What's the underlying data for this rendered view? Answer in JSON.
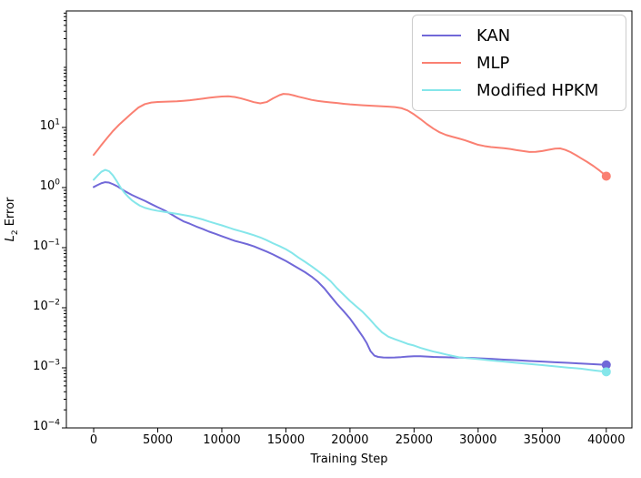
{
  "axes": {
    "xlabel": "Training Step",
    "ylabel_prefix": "L",
    "ylabel_sub": "2",
    "ylabel_rest": " Error",
    "xticks": [
      0,
      5000,
      10000,
      15000,
      20000,
      25000,
      30000,
      35000,
      40000
    ],
    "ytick_exponents": [
      1,
      0,
      -1,
      -2,
      -3,
      -4
    ]
  },
  "legend": {
    "position": "upper right",
    "items": [
      {
        "label": "KAN",
        "color": "#7168d8"
      },
      {
        "label": "MLP",
        "color": "#fa8072"
      },
      {
        "label": "Modified HPKM",
        "color": "#85e6ea"
      }
    ]
  },
  "chart_data": {
    "type": "line",
    "title": "",
    "xlabel": "Training Step",
    "ylabel": "L2 Error",
    "grid": false,
    "x_axis": {
      "min": -2130,
      "max": 42000
    },
    "y_axis": {
      "scale": "log",
      "min": 0.0001,
      "max": 870
    },
    "series": [
      {
        "name": "KAN",
        "color": "#7168d8",
        "end_marker": true,
        "final_value": 0.00112,
        "points": [
          [
            0,
            1.02
          ],
          [
            300,
            1.1
          ],
          [
            600,
            1.18
          ],
          [
            900,
            1.23
          ],
          [
            1200,
            1.21
          ],
          [
            1500,
            1.14
          ],
          [
            1800,
            1.06
          ],
          [
            2100,
            0.97
          ],
          [
            2400,
            0.88
          ],
          [
            2700,
            0.81
          ],
          [
            3000,
            0.75
          ],
          [
            3500,
            0.67
          ],
          [
            4000,
            0.6
          ],
          [
            4500,
            0.53
          ],
          [
            5000,
            0.47
          ],
          [
            5500,
            0.42
          ],
          [
            6000,
            0.365
          ],
          [
            6500,
            0.315
          ],
          [
            7000,
            0.275
          ],
          [
            7500,
            0.25
          ],
          [
            8000,
            0.225
          ],
          [
            8500,
            0.205
          ],
          [
            9000,
            0.185
          ],
          [
            9500,
            0.17
          ],
          [
            10000,
            0.155
          ],
          [
            10500,
            0.142
          ],
          [
            11000,
            0.13
          ],
          [
            11500,
            0.122
          ],
          [
            12000,
            0.114
          ],
          [
            12500,
            0.105
          ],
          [
            13000,
            0.095
          ],
          [
            13500,
            0.086
          ],
          [
            14000,
            0.077
          ],
          [
            14500,
            0.068
          ],
          [
            15000,
            0.06
          ],
          [
            15500,
            0.052
          ],
          [
            16000,
            0.045
          ],
          [
            16500,
            0.039
          ],
          [
            17000,
            0.033
          ],
          [
            17500,
            0.027
          ],
          [
            18000,
            0.021
          ],
          [
            18500,
            0.0155
          ],
          [
            19000,
            0.0115
          ],
          [
            19500,
            0.0088
          ],
          [
            20000,
            0.0066
          ],
          [
            20500,
            0.0047
          ],
          [
            21000,
            0.0033
          ],
          [
            21300,
            0.0026
          ],
          [
            21600,
            0.0019
          ],
          [
            21900,
            0.0016
          ],
          [
            22200,
            0.00152
          ],
          [
            22600,
            0.00149
          ],
          [
            23000,
            0.00148
          ],
          [
            23500,
            0.00149
          ],
          [
            24000,
            0.00151
          ],
          [
            24500,
            0.00154
          ],
          [
            25000,
            0.00156
          ],
          [
            25500,
            0.00156
          ],
          [
            26000,
            0.00154
          ],
          [
            26500,
            0.00152
          ],
          [
            27000,
            0.00151
          ],
          [
            27500,
            0.0015
          ],
          [
            28000,
            0.00149
          ],
          [
            28500,
            0.00148
          ],
          [
            29000,
            0.00147
          ],
          [
            29500,
            0.00146
          ],
          [
            30000,
            0.00144
          ],
          [
            31000,
            0.00141
          ],
          [
            32000,
            0.00137
          ],
          [
            33000,
            0.00134
          ],
          [
            34000,
            0.0013
          ],
          [
            35000,
            0.00127
          ],
          [
            36000,
            0.00124
          ],
          [
            37000,
            0.00121
          ],
          [
            38000,
            0.00118
          ],
          [
            39000,
            0.00115
          ],
          [
            40000,
            0.00112
          ]
        ]
      },
      {
        "name": "MLP",
        "color": "#fa8072",
        "end_marker": true,
        "final_value": 1.55,
        "points": [
          [
            0,
            3.5
          ],
          [
            300,
            4.2
          ],
          [
            600,
            5.1
          ],
          [
            900,
            6.1
          ],
          [
            1200,
            7.3
          ],
          [
            1500,
            8.7
          ],
          [
            2000,
            11.2
          ],
          [
            2500,
            14
          ],
          [
            3000,
            17.5
          ],
          [
            3500,
            21.5
          ],
          [
            4000,
            24.5
          ],
          [
            4500,
            26
          ],
          [
            5000,
            26.6
          ],
          [
            5500,
            26.8
          ],
          [
            6000,
            27
          ],
          [
            6500,
            27.3
          ],
          [
            7000,
            27.8
          ],
          [
            7500,
            28.4
          ],
          [
            8000,
            29.2
          ],
          [
            8500,
            30.2
          ],
          [
            9000,
            31.2
          ],
          [
            9500,
            32.1
          ],
          [
            10000,
            32.7
          ],
          [
            10500,
            33
          ],
          [
            11000,
            32.2
          ],
          [
            11500,
            30.5
          ],
          [
            12000,
            28.4
          ],
          [
            12500,
            26.4
          ],
          [
            13000,
            25.2
          ],
          [
            13500,
            26.5
          ],
          [
            14000,
            30.5
          ],
          [
            14500,
            34.5
          ],
          [
            14800,
            36.2
          ],
          [
            15200,
            35.8
          ],
          [
            15600,
            34.2
          ],
          [
            16000,
            32.4
          ],
          [
            16500,
            30.6
          ],
          [
            17000,
            28.8
          ],
          [
            17500,
            27.6
          ],
          [
            18000,
            26.8
          ],
          [
            18500,
            26.1
          ],
          [
            19000,
            25.5
          ],
          [
            19500,
            24.8
          ],
          [
            20000,
            24.2
          ],
          [
            20500,
            23.8
          ],
          [
            21000,
            23.4
          ],
          [
            21500,
            23.1
          ],
          [
            22000,
            22.8
          ],
          [
            22500,
            22.5
          ],
          [
            23000,
            22.2
          ],
          [
            23500,
            21.8
          ],
          [
            24000,
            21
          ],
          [
            24500,
            19.2
          ],
          [
            25000,
            16.5
          ],
          [
            25500,
            13.8
          ],
          [
            26000,
            11.4
          ],
          [
            26500,
            9.6
          ],
          [
            27000,
            8.3
          ],
          [
            27500,
            7.5
          ],
          [
            28000,
            7.0
          ],
          [
            28500,
            6.55
          ],
          [
            29000,
            6.1
          ],
          [
            29500,
            5.6
          ],
          [
            30000,
            5.15
          ],
          [
            30500,
            4.9
          ],
          [
            31000,
            4.72
          ],
          [
            31500,
            4.62
          ],
          [
            32000,
            4.52
          ],
          [
            32500,
            4.38
          ],
          [
            33000,
            4.2
          ],
          [
            33500,
            4.05
          ],
          [
            34000,
            3.92
          ],
          [
            34500,
            3.93
          ],
          [
            35000,
            4.05
          ],
          [
            35500,
            4.25
          ],
          [
            36000,
            4.45
          ],
          [
            36400,
            4.48
          ],
          [
            36800,
            4.25
          ],
          [
            37200,
            3.9
          ],
          [
            37600,
            3.5
          ],
          [
            38000,
            3.1
          ],
          [
            38500,
            2.68
          ],
          [
            39000,
            2.28
          ],
          [
            39500,
            1.9
          ],
          [
            40000,
            1.55
          ]
        ]
      },
      {
        "name": "Modified HPKM",
        "color": "#85e6ea",
        "end_marker": true,
        "final_value": 0.00086,
        "points": [
          [
            0,
            1.35
          ],
          [
            300,
            1.58
          ],
          [
            600,
            1.83
          ],
          [
            900,
            1.97
          ],
          [
            1200,
            1.87
          ],
          [
            1500,
            1.6
          ],
          [
            1800,
            1.28
          ],
          [
            2100,
            1.0
          ],
          [
            2400,
            0.82
          ],
          [
            2700,
            0.7
          ],
          [
            3000,
            0.61
          ],
          [
            3300,
            0.55
          ],
          [
            3600,
            0.5
          ],
          [
            4000,
            0.46
          ],
          [
            4500,
            0.43
          ],
          [
            5000,
            0.41
          ],
          [
            5500,
            0.395
          ],
          [
            6000,
            0.38
          ],
          [
            6500,
            0.365
          ],
          [
            7000,
            0.35
          ],
          [
            7500,
            0.335
          ],
          [
            8000,
            0.315
          ],
          [
            8500,
            0.295
          ],
          [
            9000,
            0.272
          ],
          [
            9500,
            0.253
          ],
          [
            10000,
            0.235
          ],
          [
            10500,
            0.217
          ],
          [
            11000,
            0.2
          ],
          [
            11500,
            0.187
          ],
          [
            12000,
            0.174
          ],
          [
            12500,
            0.161
          ],
          [
            13000,
            0.148
          ],
          [
            13500,
            0.133
          ],
          [
            14000,
            0.118
          ],
          [
            14500,
            0.106
          ],
          [
            15000,
            0.094
          ],
          [
            15500,
            0.081
          ],
          [
            16000,
            0.068
          ],
          [
            16500,
            0.058
          ],
          [
            17000,
            0.049
          ],
          [
            17500,
            0.041
          ],
          [
            18000,
            0.034
          ],
          [
            18500,
            0.0275
          ],
          [
            19000,
            0.021
          ],
          [
            19500,
            0.0165
          ],
          [
            20000,
            0.013
          ],
          [
            20500,
            0.0105
          ],
          [
            21000,
            0.0085
          ],
          [
            21500,
            0.0066
          ],
          [
            22000,
            0.005
          ],
          [
            22500,
            0.0039
          ],
          [
            23000,
            0.0033
          ],
          [
            23500,
            0.003
          ],
          [
            24000,
            0.00275
          ],
          [
            24500,
            0.0025
          ],
          [
            25000,
            0.00235
          ],
          [
            25500,
            0.00215
          ],
          [
            26000,
            0.002
          ],
          [
            26500,
            0.00187
          ],
          [
            27000,
            0.00177
          ],
          [
            27500,
            0.00167
          ],
          [
            28000,
            0.00158
          ],
          [
            28500,
            0.0015
          ],
          [
            29000,
            0.00146
          ],
          [
            29500,
            0.00143
          ],
          [
            30000,
            0.0014
          ],
          [
            31000,
            0.00133
          ],
          [
            32000,
            0.00127
          ],
          [
            33000,
            0.00121
          ],
          [
            34000,
            0.00116
          ],
          [
            35000,
            0.00111
          ],
          [
            36000,
            0.00106
          ],
          [
            37000,
            0.00101
          ],
          [
            38000,
            0.00097
          ],
          [
            39000,
            0.00091
          ],
          [
            40000,
            0.00086
          ]
        ]
      }
    ]
  }
}
